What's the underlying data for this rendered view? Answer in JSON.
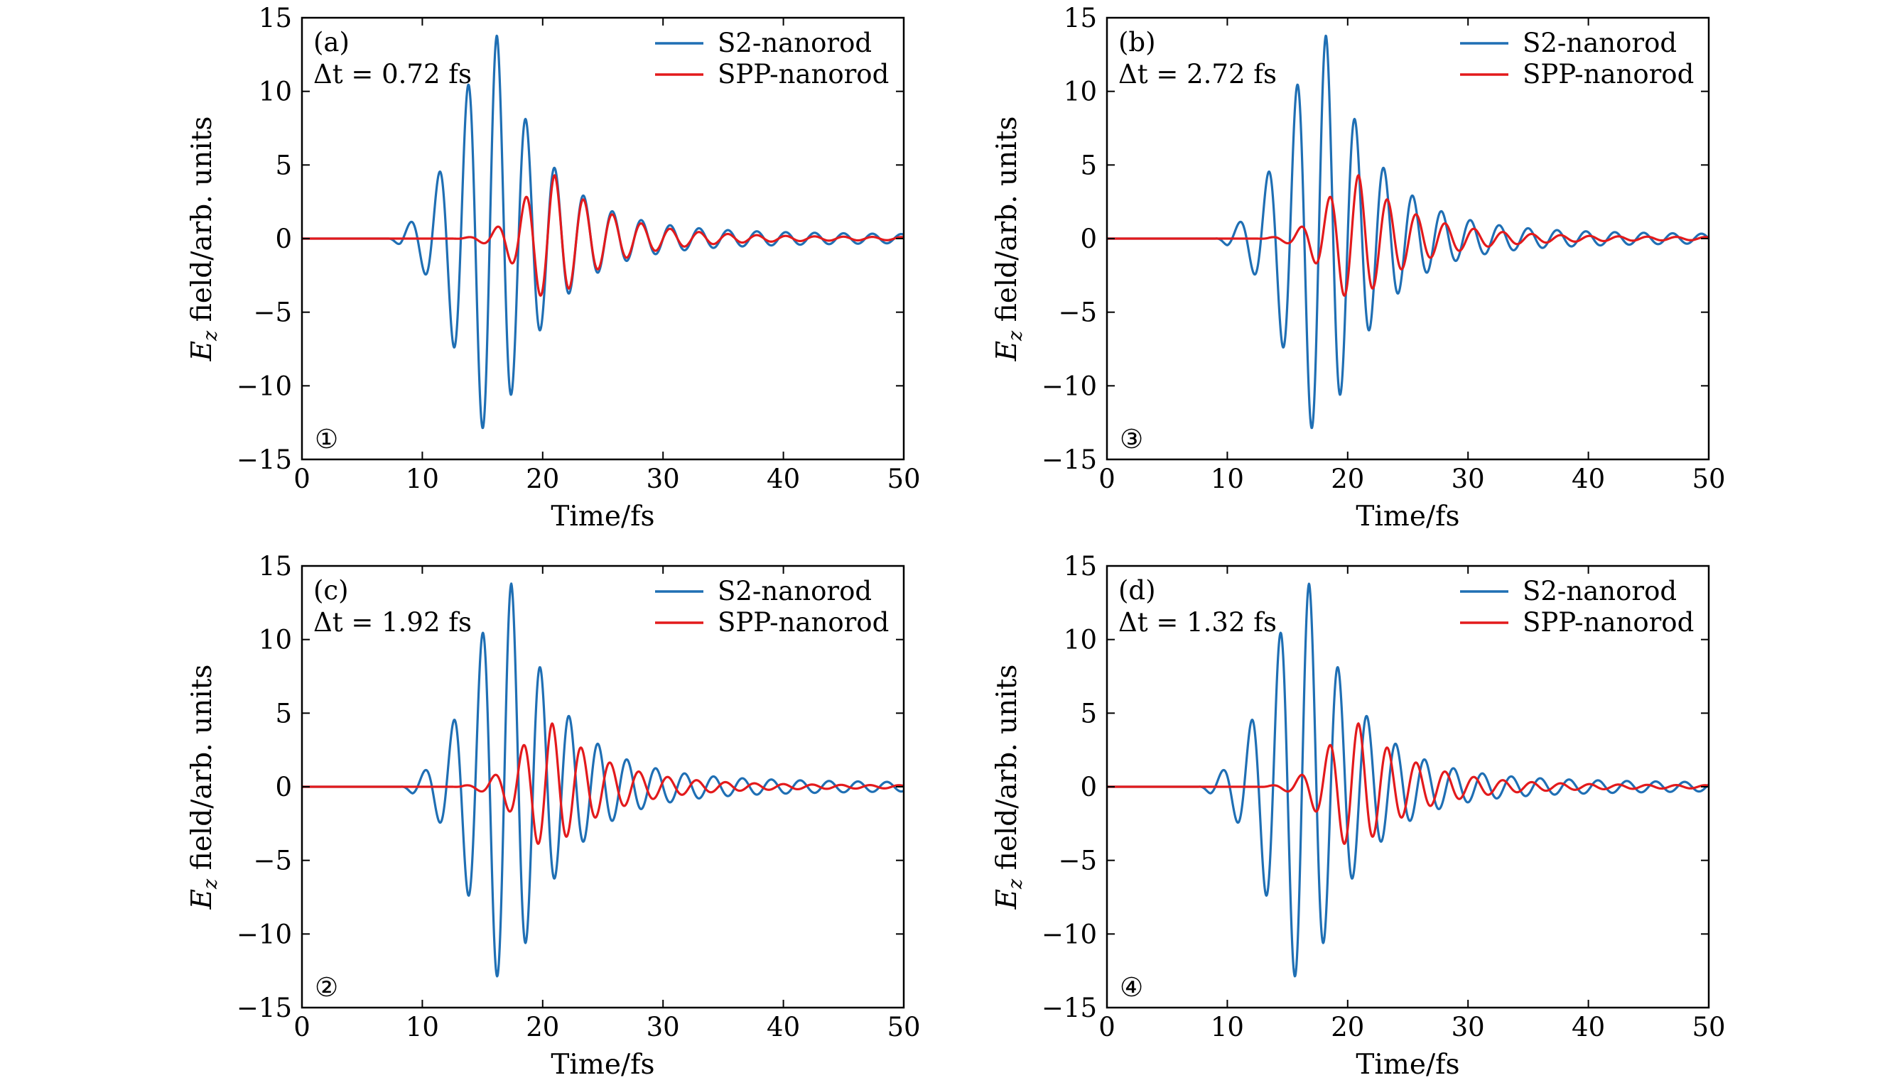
{
  "figure": {
    "panel_count": 4
  },
  "chart_data": [
    {
      "type": "line",
      "panel_label": "(a)",
      "delta_t": "Δt = 0.72 fs",
      "marker": "①",
      "xlabel": "Time/fs",
      "ylabel_symbol": "E",
      "ylabel_sub": "z",
      "ylabel_rest": " field/arb. units",
      "xlim": [
        0,
        50
      ],
      "ylim": [
        -15,
        15
      ],
      "xticks": [
        0,
        10,
        20,
        30,
        40,
        50
      ],
      "yticks": [
        15,
        10,
        5,
        0,
        -5,
        -10,
        -15
      ],
      "ytick_labels": [
        "15",
        "10",
        "5",
        "0",
        "−5",
        "−10",
        "−15"
      ],
      "legend_position": "top-right",
      "series": [
        {
          "name": "S2-nanorod",
          "color": "#1f6fb4",
          "onset": 7.2,
          "center": 16.2,
          "period": 2.4,
          "peak_amp": 13.8,
          "rise_width": 3.2,
          "decay_tau": 4.0,
          "tail_amp": 0.8,
          "tail_decay": 35
        },
        {
          "name": "SPP-nanorod",
          "color": "#e31a1c",
          "onset": 12.5,
          "center": 21.0,
          "period": 2.4,
          "peak_amp": 4.3,
          "rise_width": 2.6,
          "decay_tau": 4.5,
          "tail_amp": 0.2,
          "tail_decay": 40
        }
      ]
    },
    {
      "type": "line",
      "panel_label": "(b)",
      "delta_t": "Δt = 2.72 fs",
      "marker": "③",
      "xlabel": "Time/fs",
      "ylabel_symbol": "E",
      "ylabel_sub": "z",
      "ylabel_rest": " field/arb. units",
      "xlim": [
        0,
        50
      ],
      "ylim": [
        -15,
        15
      ],
      "xticks": [
        0,
        10,
        20,
        30,
        40,
        50
      ],
      "yticks": [
        15,
        10,
        5,
        0,
        -5,
        -10,
        -15
      ],
      "ytick_labels": [
        "15",
        "10",
        "5",
        "0",
        "−5",
        "−10",
        "−15"
      ],
      "legend_position": "top-right",
      "series": [
        {
          "name": "S2-nanorod",
          "color": "#1f6fb4",
          "onset": 9.0,
          "center": 18.2,
          "period": 2.4,
          "peak_amp": 13.8,
          "rise_width": 3.2,
          "decay_tau": 4.0,
          "tail_amp": 0.8,
          "tail_decay": 35
        },
        {
          "name": "SPP-nanorod",
          "color": "#e31a1c",
          "onset": 12.5,
          "center": 20.9,
          "period": 2.4,
          "peak_amp": 4.3,
          "rise_width": 2.6,
          "decay_tau": 4.5,
          "tail_amp": 0.2,
          "tail_decay": 40
        }
      ]
    },
    {
      "type": "line",
      "panel_label": "(c)",
      "delta_t": "Δt = 1.92 fs",
      "marker": "②",
      "xlabel": "Time/fs",
      "ylabel_symbol": "E",
      "ylabel_sub": "z",
      "ylabel_rest": " field/arb. units",
      "xlim": [
        0,
        50
      ],
      "ylim": [
        -15,
        15
      ],
      "xticks": [
        0,
        10,
        20,
        30,
        40,
        50
      ],
      "yticks": [
        15,
        10,
        5,
        0,
        -5,
        -10,
        -15
      ],
      "ytick_labels": [
        "15",
        "10",
        "5",
        "0",
        "−5",
        "−10",
        "−15"
      ],
      "legend_position": "top-right",
      "series": [
        {
          "name": "S2-nanorod",
          "color": "#1f6fb4",
          "onset": 8.2,
          "center": 17.4,
          "period": 2.4,
          "peak_amp": 13.8,
          "rise_width": 3.2,
          "decay_tau": 4.0,
          "tail_amp": 0.8,
          "tail_decay": 35
        },
        {
          "name": "SPP-nanorod",
          "color": "#e31a1c",
          "onset": 12.5,
          "center": 20.8,
          "period": 2.4,
          "peak_amp": 4.3,
          "rise_width": 2.6,
          "decay_tau": 4.5,
          "tail_amp": 0.2,
          "tail_decay": 40
        }
      ]
    },
    {
      "type": "line",
      "panel_label": "(d)",
      "delta_t": "Δt = 1.32 fs",
      "marker": "④",
      "xlabel": "Time/fs",
      "ylabel_symbol": "E",
      "ylabel_sub": "z",
      "ylabel_rest": " field/arb. units",
      "xlim": [
        0,
        50
      ],
      "ylim": [
        -15,
        15
      ],
      "xticks": [
        0,
        10,
        20,
        30,
        40,
        50
      ],
      "yticks": [
        15,
        10,
        5,
        0,
        -5,
        -10,
        -15
      ],
      "ytick_labels": [
        "15",
        "10",
        "5",
        "0",
        "−5",
        "−10",
        "−15"
      ],
      "legend_position": "top-right",
      "series": [
        {
          "name": "S2-nanorod",
          "color": "#1f6fb4",
          "onset": 7.6,
          "center": 16.8,
          "period": 2.4,
          "peak_amp": 13.8,
          "rise_width": 3.2,
          "decay_tau": 4.0,
          "tail_amp": 0.8,
          "tail_decay": 35
        },
        {
          "name": "SPP-nanorod",
          "color": "#e31a1c",
          "onset": 12.5,
          "center": 20.9,
          "period": 2.4,
          "peak_amp": 4.3,
          "rise_width": 2.6,
          "decay_tau": 4.5,
          "tail_amp": 0.2,
          "tail_decay": 40
        }
      ]
    }
  ]
}
